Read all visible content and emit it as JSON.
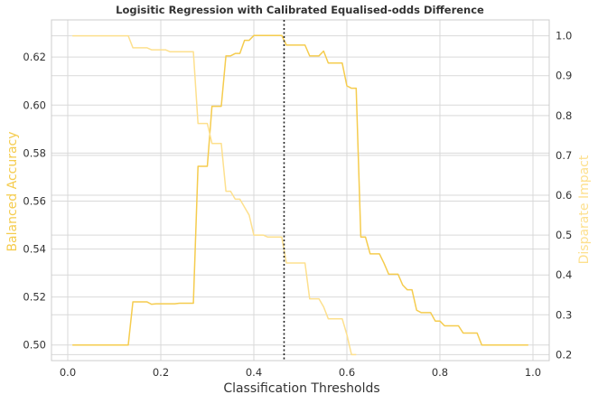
{
  "chart_data": {
    "type": "line",
    "title": "Logisitic Regression with Calibrated Equalised-odds Difference",
    "xlabel": "Classification Thresholds",
    "ylabel_left": "Balanced Accuracy",
    "ylabel_right": "Disparate Impact",
    "xlim": [
      -0.035,
      1.035
    ],
    "ylim_left": [
      0.4935,
      0.6355
    ],
    "ylim_right": [
      0.185,
      1.04
    ],
    "xticks": [
      "0.0",
      "0.2",
      "0.4",
      "0.6",
      "0.8",
      "1.0"
    ],
    "yticks_left": [
      "0.50",
      "0.52",
      "0.54",
      "0.56",
      "0.58",
      "0.60",
      "0.62"
    ],
    "yticks_right": [
      "0.2",
      "0.3",
      "0.4",
      "0.5",
      "0.6",
      "0.7",
      "0.8",
      "0.9",
      "1.0"
    ],
    "grid": true,
    "vline_x": 0.465,
    "colors": {
      "balanced_accuracy": "#f5cc4e",
      "disparate_impact": "#fde08e",
      "vline": "#222222",
      "grid": "#d9d9d9",
      "axis_label_left": "#f5cc4e",
      "axis_label_right": "#fde08e",
      "text": "#333333"
    },
    "series": [
      {
        "axis": "left",
        "x": [
          0.01,
          0.02,
          0.03,
          0.04,
          0.05,
          0.06,
          0.07,
          0.08,
          0.09,
          0.1,
          0.11,
          0.12,
          0.13,
          0.14,
          0.15,
          0.16,
          0.17,
          0.18,
          0.19,
          0.2,
          0.21,
          0.22,
          0.23,
          0.24,
          0.25,
          0.26,
          0.27,
          0.28,
          0.29,
          0.3,
          0.31,
          0.32,
          0.33,
          0.34,
          0.35,
          0.36,
          0.37,
          0.38,
          0.39,
          0.4,
          0.41,
          0.42,
          0.43,
          0.44,
          0.45,
          0.46,
          0.47,
          0.48,
          0.49,
          0.5,
          0.51,
          0.52,
          0.53,
          0.54,
          0.55,
          0.56,
          0.57,
          0.58,
          0.59,
          0.6,
          0.61,
          0.62,
          0.63,
          0.64,
          0.65,
          0.66,
          0.67,
          0.68,
          0.69,
          0.7,
          0.71,
          0.72,
          0.73,
          0.74,
          0.75,
          0.76,
          0.77,
          0.78,
          0.79,
          0.8,
          0.81,
          0.82,
          0.83,
          0.84,
          0.85,
          0.86,
          0.87,
          0.88,
          0.89,
          0.9,
          0.91,
          0.92,
          0.93,
          0.94,
          0.95,
          0.96,
          0.97,
          0.98,
          0.99
        ],
        "values": [
          0.5,
          0.5,
          0.5,
          0.5,
          0.5,
          0.5,
          0.5,
          0.5,
          0.5,
          0.5,
          0.5,
          0.5,
          0.5,
          0.518,
          0.518,
          0.518,
          0.518,
          0.517,
          0.5172,
          0.5172,
          0.5172,
          0.5172,
          0.5172,
          0.5174,
          0.5174,
          0.5174,
          0.5174,
          0.5745,
          0.5745,
          0.5745,
          0.5995,
          0.5995,
          0.5995,
          0.6205,
          0.6205,
          0.6215,
          0.6215,
          0.627,
          0.627,
          0.629,
          0.629,
          0.629,
          0.629,
          0.629,
          0.629,
          0.629,
          0.625,
          0.625,
          0.625,
          0.625,
          0.625,
          0.6205,
          0.6205,
          0.6205,
          0.6225,
          0.6175,
          0.6175,
          0.6175,
          0.6175,
          0.608,
          0.607,
          0.607,
          0.545,
          0.545,
          0.538,
          0.538,
          0.538,
          0.534,
          0.5295,
          0.5295,
          0.5295,
          0.525,
          0.523,
          0.523,
          0.5145,
          0.5135,
          0.5135,
          0.5135,
          0.51,
          0.51,
          0.508,
          0.508,
          0.508,
          0.508,
          0.505,
          0.505,
          0.505,
          0.505,
          0.5,
          0.5,
          0.5,
          0.5,
          0.5,
          0.5,
          0.5,
          0.5,
          0.5,
          0.5,
          0.5
        ]
      },
      {
        "axis": "right",
        "x": [
          0.01,
          0.02,
          0.03,
          0.04,
          0.05,
          0.06,
          0.07,
          0.08,
          0.09,
          0.1,
          0.11,
          0.12,
          0.13,
          0.14,
          0.15,
          0.16,
          0.17,
          0.18,
          0.19,
          0.2,
          0.21,
          0.22,
          0.23,
          0.24,
          0.25,
          0.26,
          0.27,
          0.28,
          0.29,
          0.3,
          0.31,
          0.32,
          0.33,
          0.34,
          0.35,
          0.36,
          0.37,
          0.38,
          0.39,
          0.4,
          0.41,
          0.42,
          0.43,
          0.44,
          0.45,
          0.46,
          0.47,
          0.48,
          0.49,
          0.5,
          0.51,
          0.52,
          0.53,
          0.54,
          0.55,
          0.56,
          0.57,
          0.58,
          0.59,
          0.6,
          0.61,
          0.62
        ],
        "values": [
          1.0,
          1.0,
          1.0,
          1.0,
          1.0,
          1.0,
          1.0,
          1.0,
          1.0,
          1.0,
          1.0,
          1.0,
          1.0,
          0.97,
          0.97,
          0.97,
          0.97,
          0.965,
          0.965,
          0.965,
          0.965,
          0.96,
          0.96,
          0.96,
          0.96,
          0.96,
          0.96,
          0.78,
          0.78,
          0.78,
          0.73,
          0.73,
          0.73,
          0.61,
          0.61,
          0.59,
          0.59,
          0.57,
          0.55,
          0.5,
          0.5,
          0.5,
          0.495,
          0.495,
          0.495,
          0.495,
          0.43,
          0.43,
          0.43,
          0.43,
          0.43,
          0.34,
          0.34,
          0.34,
          0.32,
          0.29,
          0.29,
          0.29,
          0.29,
          0.25,
          0.2,
          0.2
        ]
      }
    ]
  }
}
